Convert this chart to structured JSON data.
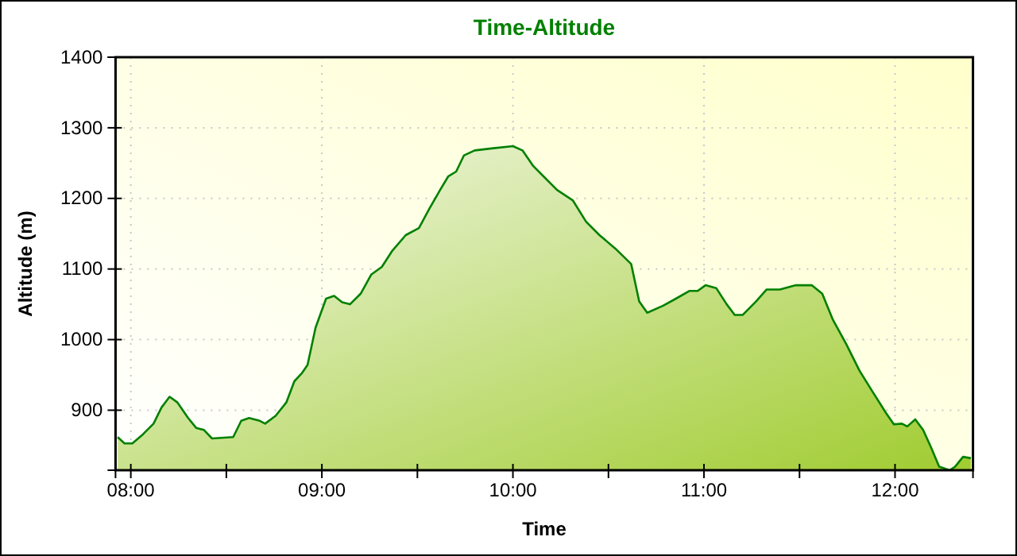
{
  "chart_data": {
    "type": "area",
    "title": "Time-Altitude",
    "xlabel": "Time",
    "ylabel": "Altitude (m)",
    "xlim": [
      7.92,
      12.408
    ],
    "ylim": [
      815,
      1400
    ],
    "xticks": [
      {
        "value": 8,
        "label": "08:00"
      },
      {
        "value": 8.5,
        "label": null
      },
      {
        "value": 9,
        "label": "09:00"
      },
      {
        "value": 9.5,
        "label": null
      },
      {
        "value": 10,
        "label": "10:00"
      },
      {
        "value": 10.5,
        "label": null
      },
      {
        "value": 11,
        "label": "11:00"
      },
      {
        "value": 11.5,
        "label": null
      },
      {
        "value": 12,
        "label": "12:00"
      }
    ],
    "yticks": [
      900,
      1000,
      1100,
      1200,
      1300,
      1400
    ],
    "grid": true,
    "series": [
      {
        "color": "#008000",
        "x": [
          7.931,
          7.967,
          8.008,
          8.064,
          8.119,
          8.161,
          8.203,
          8.244,
          8.3,
          8.342,
          8.383,
          8.425,
          8.536,
          8.578,
          8.619,
          8.675,
          8.703,
          8.758,
          8.814,
          8.856,
          8.897,
          8.925,
          8.967,
          9.022,
          9.064,
          9.106,
          9.147,
          9.203,
          9.258,
          9.314,
          9.369,
          9.439,
          9.508,
          9.564,
          9.619,
          9.661,
          9.703,
          9.744,
          9.8,
          9.897,
          10.0,
          10.05,
          10.106,
          10.161,
          10.231,
          10.314,
          10.383,
          10.453,
          10.536,
          10.619,
          10.661,
          10.703,
          10.786,
          10.853,
          10.925,
          10.967,
          11.008,
          11.064,
          11.119,
          11.161,
          11.203,
          11.272,
          11.328,
          11.397,
          11.481,
          11.564,
          11.619,
          11.675,
          11.744,
          11.814,
          11.883,
          11.953,
          11.994,
          12.036,
          12.064,
          12.106,
          12.147,
          12.189,
          12.231,
          12.286,
          12.314,
          12.356,
          12.397
        ],
        "values": [
          862,
          853,
          853,
          866,
          881,
          904,
          919,
          911,
          889,
          875,
          872,
          860,
          862,
          885,
          889,
          885,
          881,
          892,
          911,
          941,
          953,
          964,
          1017,
          1058,
          1062,
          1053,
          1050,
          1065,
          1092,
          1103,
          1126,
          1148,
          1158,
          1186,
          1212,
          1231,
          1238,
          1261,
          1268,
          1271,
          1274,
          1268,
          1246,
          1231,
          1212,
          1197,
          1167,
          1148,
          1129,
          1107,
          1054,
          1038,
          1048,
          1058,
          1069,
          1069,
          1077,
          1073,
          1050,
          1035,
          1035,
          1054,
          1071,
          1071,
          1077,
          1077,
          1065,
          1028,
          994,
          956,
          926,
          896,
          880,
          881,
          877,
          887,
          872,
          847,
          820,
          815,
          820,
          834,
          832
        ]
      }
    ]
  }
}
